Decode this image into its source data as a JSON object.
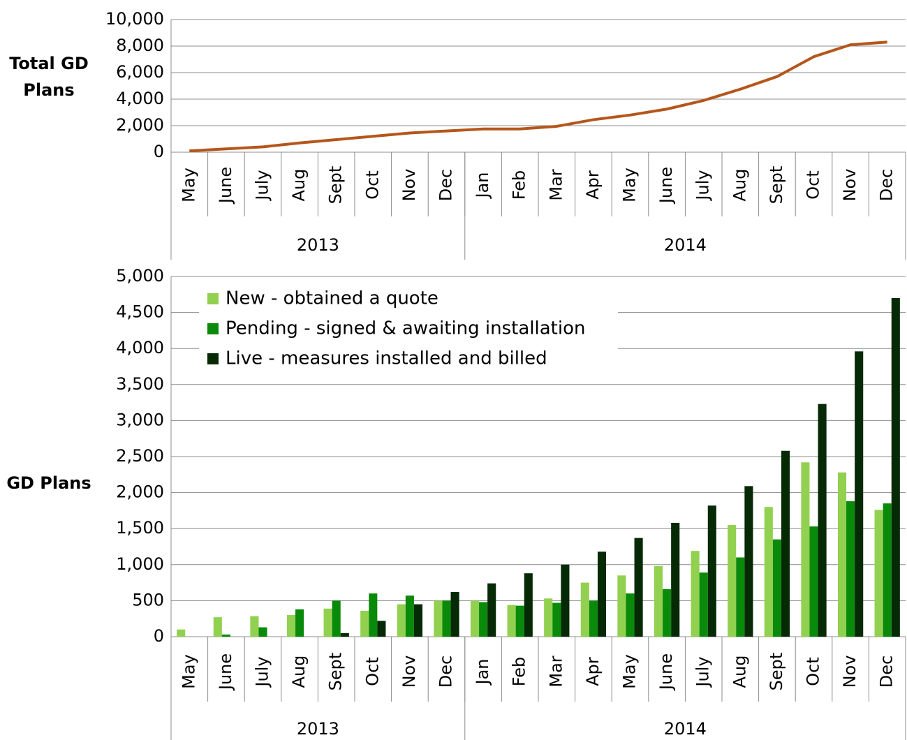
{
  "chart_data": [
    {
      "type": "line",
      "y_label": "Total GD Plans",
      "category_groups": [
        {
          "label": "2013",
          "categories": [
            "May",
            "June",
            "July",
            "Aug",
            "Sept",
            "Oct",
            "Nov",
            "Dec"
          ]
        },
        {
          "label": "2014",
          "categories": [
            "Jan",
            "Feb",
            "Mar",
            "Apr",
            "May",
            "June",
            "July",
            "Aug",
            "Sept",
            "Oct",
            "Nov",
            "Dec"
          ]
        }
      ],
      "values": [
        100,
        250,
        400,
        700,
        950,
        1200,
        1450,
        1600,
        1750,
        1750,
        1950,
        2450,
        2800,
        3250,
        3900,
        4750,
        5700,
        7200,
        8100,
        8300
      ],
      "color": "#b5561b",
      "ylim": [
        0,
        10000
      ],
      "yticks": [
        0,
        {
          "value": 2000,
          "label": "2,000"
        },
        {
          "value": 4000,
          "label": "4,000"
        },
        {
          "value": 6000,
          "label": "6,000"
        },
        {
          "value": 8000,
          "label": "8,000"
        },
        {
          "value": 10000,
          "label": "10,000"
        }
      ],
      "grid": true
    },
    {
      "type": "bar",
      "y_label": "GD Plans",
      "category_groups": [
        {
          "label": "2013",
          "categories": [
            "May",
            "June",
            "July",
            "Aug",
            "Sept",
            "Oct",
            "Nov",
            "Dec"
          ]
        },
        {
          "label": "2014",
          "categories": [
            "Jan",
            "Feb",
            "Mar",
            "Apr",
            "May",
            "June",
            "July",
            "Aug",
            "Sept",
            "Oct",
            "Nov",
            "Dec"
          ]
        }
      ],
      "series": [
        {
          "name": "New - obtained a quote",
          "color": "#92d050",
          "values": [
            100,
            270,
            285,
            300,
            390,
            360,
            450,
            500,
            500,
            440,
            530,
            750,
            850,
            980,
            1190,
            1550,
            1800,
            2420,
            2280,
            1760
          ]
        },
        {
          "name": "Pending - signed & awaiting installation",
          "color": "#0a8a0a",
          "values": [
            0,
            30,
            130,
            380,
            500,
            600,
            570,
            500,
            480,
            430,
            470,
            500,
            600,
            660,
            890,
            1100,
            1350,
            1530,
            1880,
            1850
          ]
        },
        {
          "name": "Live - measures installed and billed",
          "color": "#062a06",
          "values": [
            0,
            0,
            0,
            0,
            50,
            220,
            450,
            620,
            740,
            880,
            1000,
            1180,
            1370,
            1580,
            1820,
            2090,
            2580,
            3230,
            3960,
            4700
          ]
        }
      ],
      "ylim": [
        0,
        5000
      ],
      "yticks": [
        0,
        500,
        {
          "value": 1000,
          "label": "1,000"
        },
        {
          "value": 1500,
          "label": "1,500"
        },
        {
          "value": 2000,
          "label": "2,000"
        },
        {
          "value": 2500,
          "label": "2,500"
        },
        {
          "value": 3000,
          "label": "3,000"
        },
        {
          "value": 3500,
          "label": "3,500"
        },
        {
          "value": 4000,
          "label": "4,000"
        },
        {
          "value": 4500,
          "label": "4,500"
        },
        {
          "value": 5000,
          "label": "5,000"
        }
      ],
      "grid": true,
      "legend": "upper left"
    }
  ]
}
